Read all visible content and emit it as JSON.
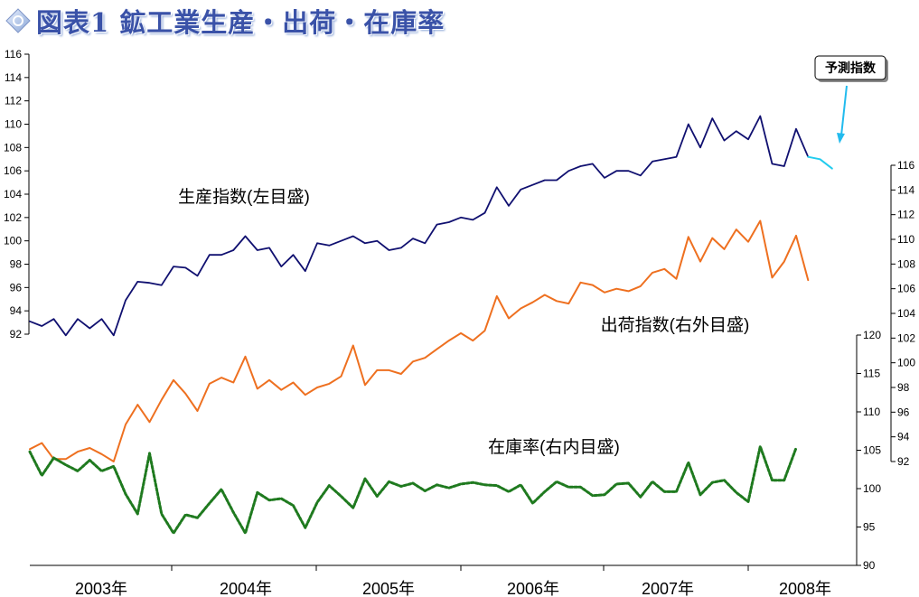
{
  "title": "図表1 鉱工業生産・出荷・在庫率",
  "chart_data": {
    "type": "line",
    "x_labels": [
      "2003年",
      "2004年",
      "2005年",
      "2006年",
      "2007年",
      "2008年"
    ],
    "axes": {
      "left": {
        "ticks": [
          "116",
          "114",
          "112",
          "110",
          "108",
          "106",
          "104",
          "102",
          "100",
          "98",
          "96",
          "94",
          "92"
        ],
        "ylim": [
          92,
          116
        ]
      },
      "right_outer": {
        "ticks": [
          "116",
          "114",
          "112",
          "110",
          "108",
          "106",
          "104",
          "102",
          "100",
          "98",
          "96",
          "94",
          "92"
        ],
        "ylim": [
          92,
          116
        ]
      },
      "right_inner": {
        "ticks": [
          "120",
          "115",
          "110",
          "105",
          "100",
          "95",
          "90"
        ],
        "ylim": [
          90,
          120
        ]
      }
    },
    "colors": {
      "production": "#101070",
      "forecast": "#22ccee",
      "shipments": "#ee7020",
      "inventory": "#1f7a1f",
      "callout_arrow": "#22bbee"
    },
    "annotations": {
      "production": "生産指数(左目盛)",
      "shipments": "出荷指数(右外目盛)",
      "inventory": "在庫率(右内目盛)",
      "forecast_callout": "予測指数"
    },
    "series": [
      {
        "key": "production",
        "axis": "left",
        "values": [
          93.1,
          92.7,
          93.3,
          91.9,
          93.3,
          92.5,
          93.3,
          91.9,
          94.9,
          96.5,
          96.4,
          96.2,
          97.8,
          97.7,
          97.0,
          98.8,
          98.8,
          99.2,
          100.4,
          99.2,
          99.4,
          97.8,
          98.8,
          97.4,
          99.8,
          99.6,
          100.0,
          100.4,
          99.8,
          100.0,
          99.2,
          99.4,
          100.2,
          99.8,
          101.4,
          101.6,
          102.0,
          101.8,
          102.4,
          104.6,
          103.0,
          104.4,
          104.8,
          105.2,
          105.2,
          106.0,
          106.4,
          106.6,
          105.4,
          106.0,
          106.0,
          105.6,
          106.8,
          107.0,
          107.2,
          110.0,
          108.0,
          110.5,
          108.6,
          109.4,
          108.7,
          110.7,
          106.6,
          106.4,
          109.6,
          107.2
        ]
      },
      {
        "key": "forecast",
        "axis": "left",
        "values": [
          107.2,
          107.0,
          106.2
        ]
      },
      {
        "key": "shipments",
        "axis": "right_outer",
        "values": [
          93.0,
          93.5,
          92.2,
          92.2,
          92.8,
          93.1,
          92.6,
          92.0,
          95.0,
          96.6,
          95.2,
          97.0,
          98.6,
          97.5,
          96.1,
          98.3,
          98.8,
          98.4,
          100.5,
          97.9,
          98.6,
          97.8,
          98.4,
          97.4,
          98.0,
          98.3,
          98.9,
          101.4,
          98.2,
          99.4,
          99.4,
          99.1,
          100.1,
          100.4,
          101.1,
          101.8,
          102.4,
          101.8,
          102.6,
          105.4,
          103.6,
          104.4,
          104.9,
          105.5,
          105.0,
          104.8,
          106.5,
          106.3,
          105.7,
          106.0,
          105.8,
          106.2,
          107.3,
          107.6,
          106.8,
          110.2,
          108.2,
          110.1,
          109.2,
          110.8,
          109.8,
          111.5,
          106.9,
          108.2,
          110.3,
          106.7
        ]
      },
      {
        "key": "inventory",
        "axis": "right_inner",
        "values": [
          104.8,
          101.7,
          104.0,
          103.1,
          102.3,
          103.7,
          102.3,
          102.9,
          99.3,
          96.7,
          104.6,
          96.7,
          94.2,
          96.6,
          96.2,
          98.1,
          99.9,
          96.9,
          94.2,
          99.5,
          98.5,
          98.7,
          97.8,
          94.9,
          98.2,
          100.4,
          99.0,
          97.5,
          101.3,
          99.0,
          100.9,
          100.3,
          100.7,
          99.7,
          100.5,
          100.1,
          100.6,
          100.8,
          100.5,
          100.4,
          99.6,
          100.5,
          98.1,
          99.6,
          100.9,
          100.2,
          100.2,
          99.1,
          99.2,
          100.6,
          100.7,
          98.9,
          100.9,
          99.6,
          99.6,
          103.4,
          99.2,
          100.8,
          101.1,
          99.5,
          98.3,
          105.5,
          101.1,
          101.1,
          105.3
        ]
      }
    ]
  }
}
